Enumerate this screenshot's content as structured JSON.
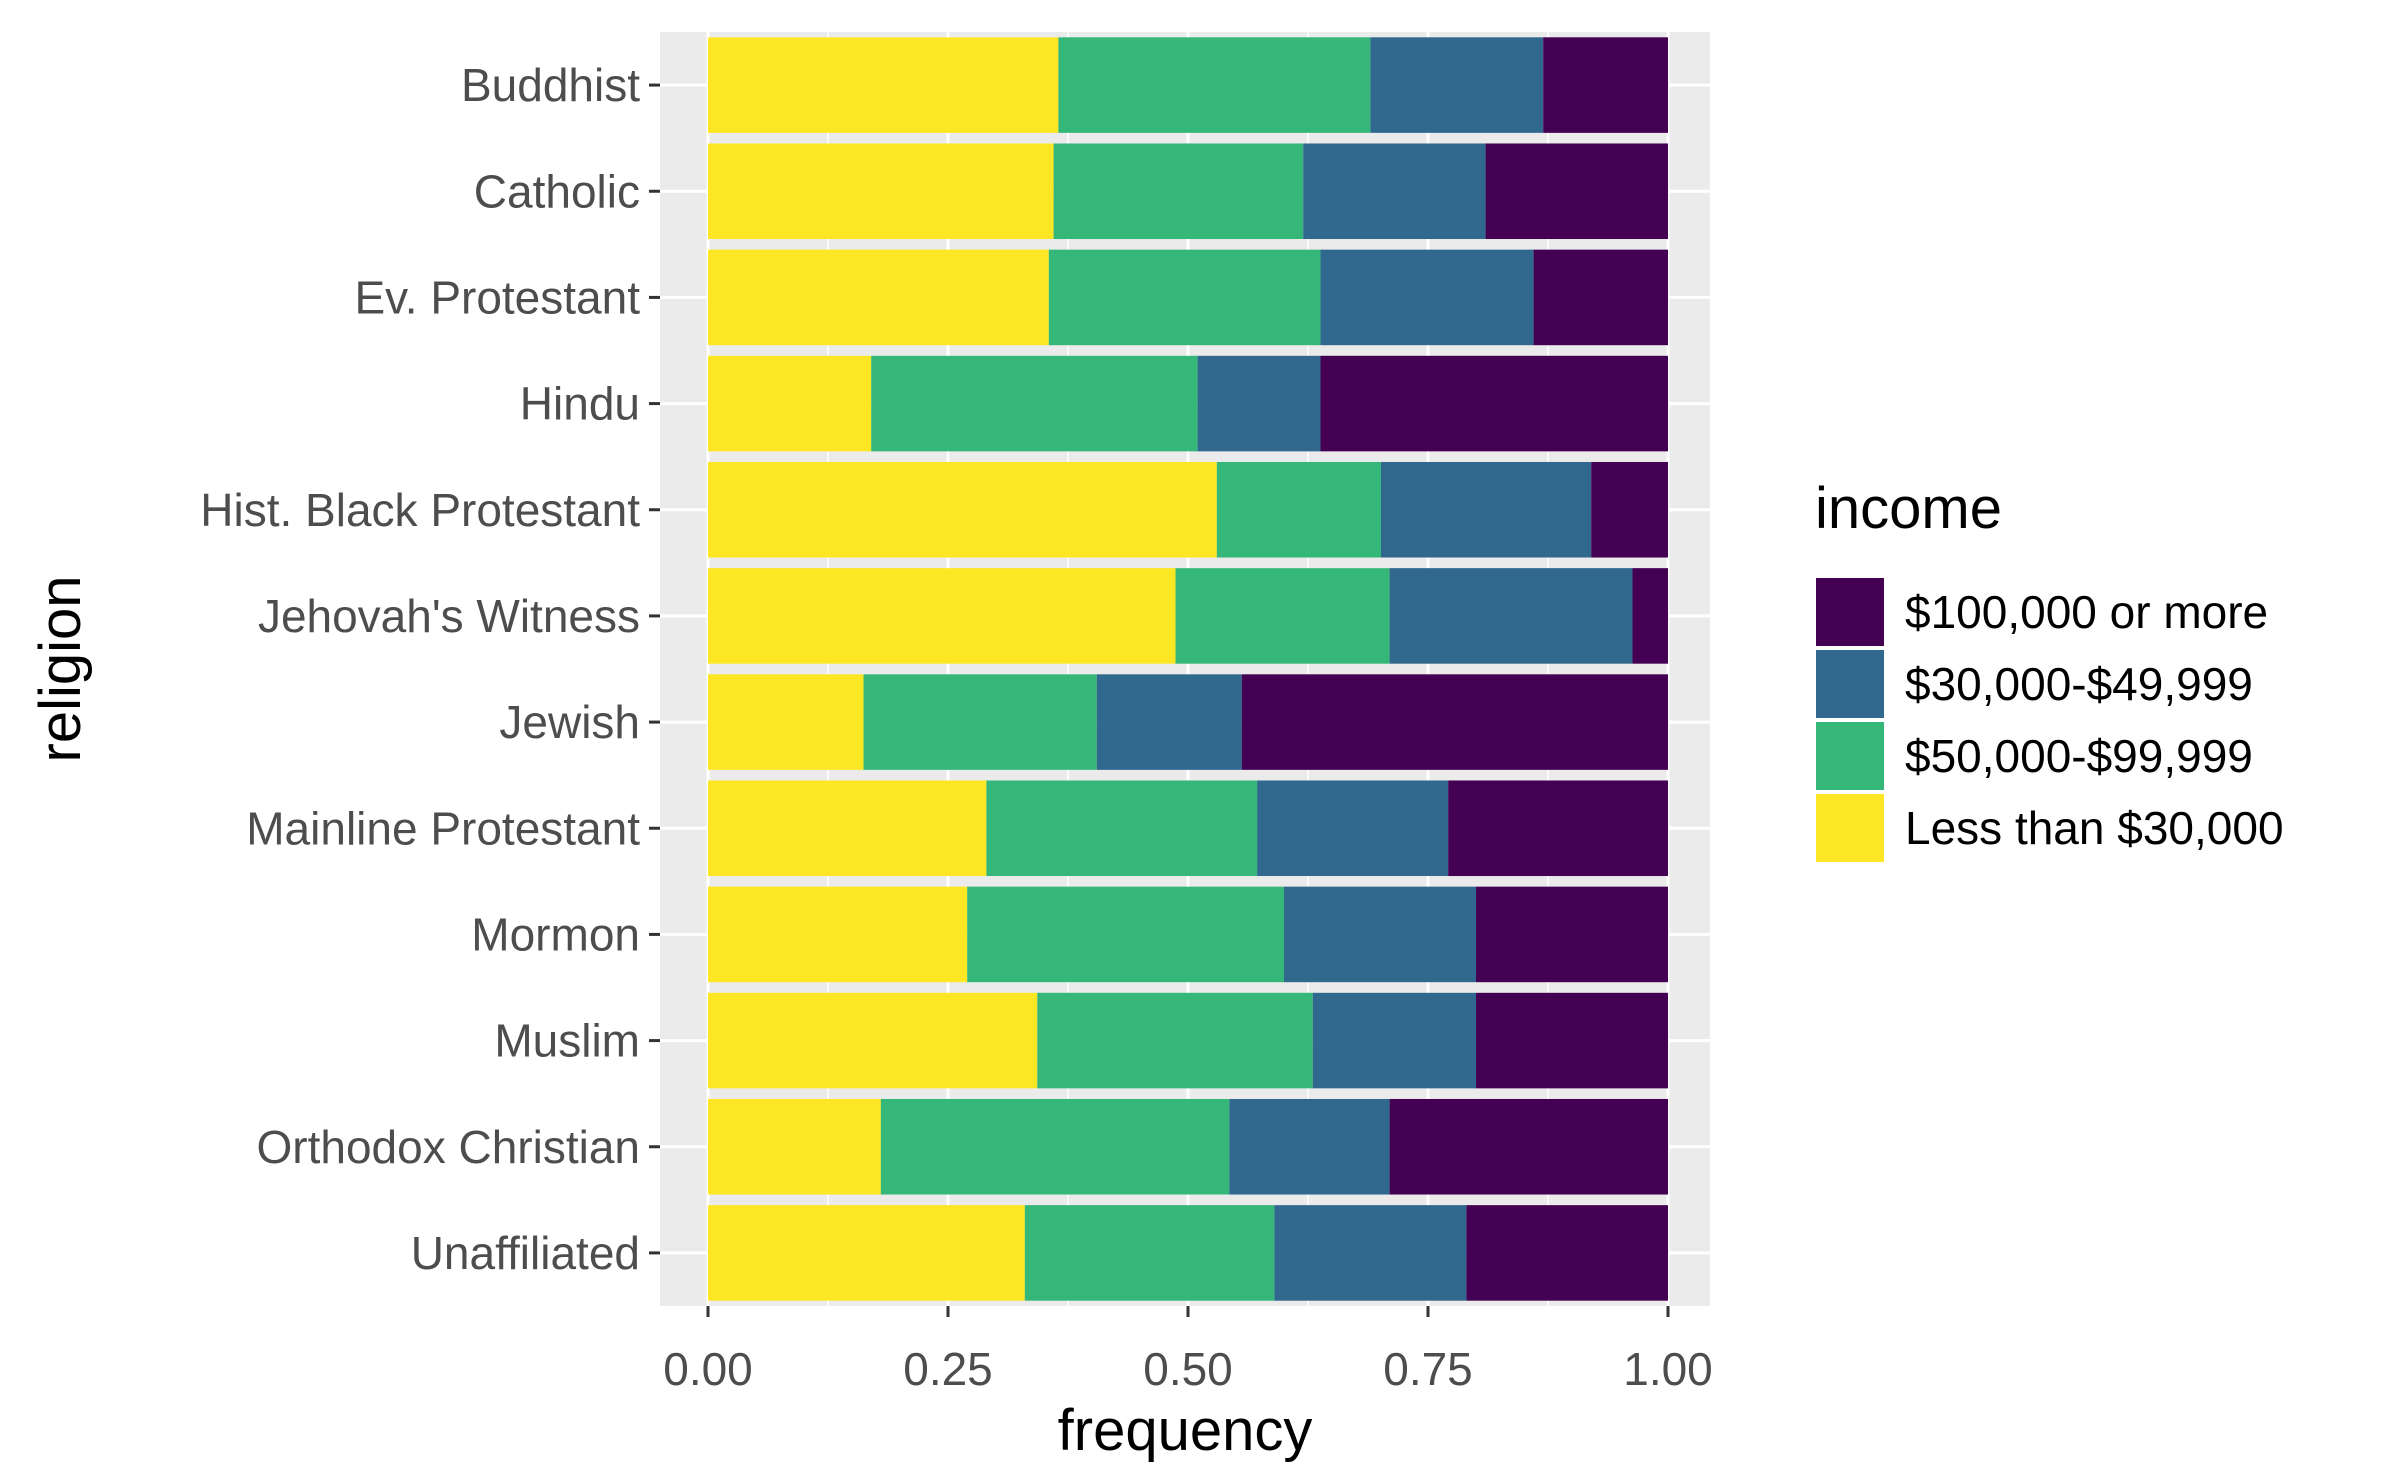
{
  "chart_data": {
    "type": "bar",
    "orientation": "horizontal",
    "stacked": true,
    "xlabel": "frequency",
    "ylabel": "religion",
    "xlim": [
      0,
      1
    ],
    "x_ticks": [
      "0.00",
      "0.25",
      "0.50",
      "0.75",
      "1.00"
    ],
    "x_tick_values": [
      0,
      0.25,
      0.5,
      0.75,
      1.0
    ],
    "grid": true,
    "legend": {
      "title": "income",
      "position": "right",
      "entries": [
        {
          "label": "$100,000 or more",
          "color": "#440154"
        },
        {
          "label": "$30,000-$49,999",
          "color": "#31688E"
        },
        {
          "label": "$50,000-$99,999",
          "color": "#35B779"
        },
        {
          "label": "Less than $30,000",
          "color": "#FDE725"
        }
      ]
    },
    "stack_order": [
      "Less than $30,000",
      "$50,000-$99,999",
      "$30,000-$49,999",
      "$100,000 or more"
    ],
    "categories": [
      "Buddhist",
      "Catholic",
      "Ev. Protestant",
      "Hindu",
      "Hist. Black Protestant",
      "Jehovah's Witness",
      "Jewish",
      "Mainline Protestant",
      "Mormon",
      "Muslim",
      "Orthodox Christian",
      "Unaffiliated"
    ],
    "series": [
      {
        "name": "Less than $30,000",
        "color": "#FDE725",
        "values": [
          0.365,
          0.36,
          0.355,
          0.17,
          0.53,
          0.487,
          0.162,
          0.29,
          0.27,
          0.343,
          0.18,
          0.33
        ]
      },
      {
        "name": "$50,000-$99,999",
        "color": "#35B779",
        "values": [
          0.325,
          0.26,
          0.283,
          0.34,
          0.171,
          0.223,
          0.243,
          0.282,
          0.33,
          0.287,
          0.363,
          0.26
        ]
      },
      {
        "name": "$30,000-$49,999",
        "color": "#31688E",
        "values": [
          0.18,
          0.19,
          0.222,
          0.128,
          0.219,
          0.253,
          0.151,
          0.199,
          0.2,
          0.17,
          0.167,
          0.2
        ]
      },
      {
        "name": "$100,000 or more",
        "color": "#440154",
        "values": [
          0.13,
          0.19,
          0.14,
          0.362,
          0.08,
          0.037,
          0.444,
          0.229,
          0.2,
          0.2,
          0.29,
          0.21
        ]
      }
    ]
  }
}
